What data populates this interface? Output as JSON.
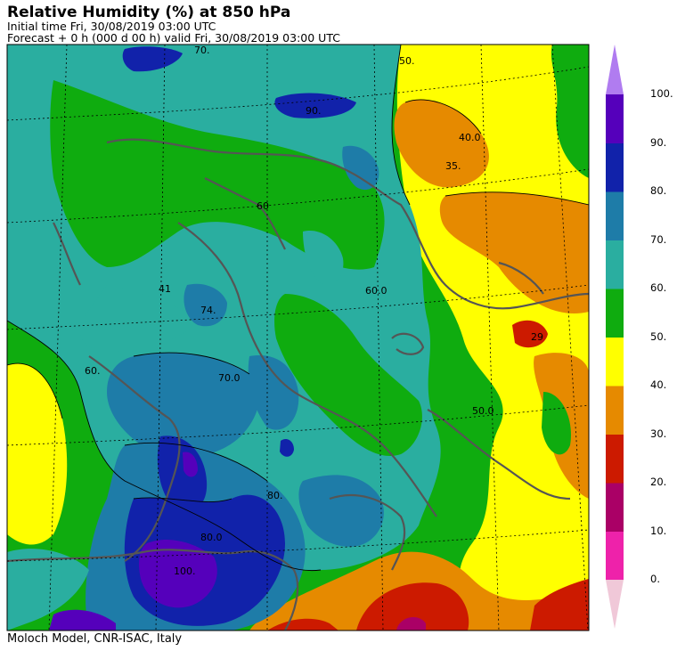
{
  "header": {
    "title": "Relative Humidity (%) at 850 hPa",
    "initial_time": "Initial time  Fri, 30/08/2019  03:00 UTC",
    "forecast": "Forecast  +   0 h  (000 d 00 h)  valid Fri, 30/08/2019 03:00 UTC"
  },
  "footer": {
    "credit": "Moloch Model, CNR-ISAC, Italy"
  },
  "colorbar": {
    "bands": [
      {
        "from": 0,
        "to": 10,
        "color": "#ee22aa"
      },
      {
        "from": 10,
        "to": 20,
        "color": "#aa0066"
      },
      {
        "from": 20,
        "to": 30,
        "color": "#cc1a00"
      },
      {
        "from": 30,
        "to": 40,
        "color": "#e68a00"
      },
      {
        "from": 40,
        "to": 50,
        "color": "#ffff00"
      },
      {
        "from": 50,
        "to": 60,
        "color": "#0fac0f"
      },
      {
        "from": 60,
        "to": 70,
        "color": "#2aaea0"
      },
      {
        "from": 70,
        "to": 80,
        "color": "#1e7ca8"
      },
      {
        "from": 80,
        "to": 90,
        "color": "#1122aa"
      },
      {
        "from": 90,
        "to": 100,
        "color": "#5500bb"
      }
    ],
    "over_color": "#b07cf0",
    "under_color": "#f0c8d8",
    "labels": [
      "0.",
      "10.",
      "20.",
      "30.",
      "40.",
      "50.",
      "60.",
      "70.",
      "80.",
      "90.",
      "100."
    ]
  },
  "map": {
    "background_color": "#0fac0f",
    "contour_labels": [
      "90.",
      "70.",
      "60",
      "50.",
      "40.0",
      "35.",
      "60.0",
      "74.",
      "70.0",
      "41",
      "80.0",
      "100.",
      "50.0",
      "29",
      "60.",
      "80."
    ]
  }
}
